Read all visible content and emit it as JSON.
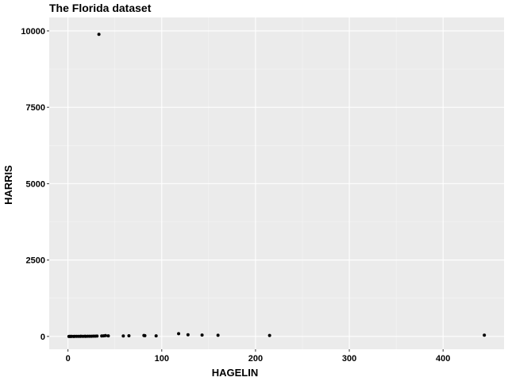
{
  "chart_data": {
    "type": "scatter",
    "title": "The Florida dataset",
    "xlabel": "HAGELIN",
    "ylabel": "HARRIS",
    "xlim": [
      -20,
      465
    ],
    "ylim": [
      -420,
      10440
    ],
    "x_ticks": [
      0,
      100,
      200,
      300,
      400
    ],
    "y_ticks": [
      0,
      2500,
      5000,
      7500,
      10000
    ],
    "x_tick_labels": [
      "0",
      "100",
      "200",
      "300",
      "400"
    ],
    "y_tick_labels": [
      "0",
      "2500",
      "5000",
      "7500",
      "10000"
    ],
    "grid": true,
    "legend": "none",
    "colors": {
      "panel": "#ebebeb",
      "grid_major": "#ffffff",
      "grid_minor": "#f5f5f5",
      "point": "#000000"
    },
    "points": [
      {
        "x": 33,
        "y": 9888
      },
      {
        "x": 1,
        "y": 0
      },
      {
        "x": 2,
        "y": 1
      },
      {
        "x": 3,
        "y": 0
      },
      {
        "x": 4,
        "y": 2
      },
      {
        "x": 6,
        "y": 0
      },
      {
        "x": 7,
        "y": 1
      },
      {
        "x": 9,
        "y": 3
      },
      {
        "x": 11,
        "y": 1
      },
      {
        "x": 13,
        "y": 2
      },
      {
        "x": 14,
        "y": 4
      },
      {
        "x": 16,
        "y": 2
      },
      {
        "x": 18,
        "y": 5
      },
      {
        "x": 19,
        "y": 3
      },
      {
        "x": 21,
        "y": 6
      },
      {
        "x": 23,
        "y": 4
      },
      {
        "x": 25,
        "y": 7
      },
      {
        "x": 27,
        "y": 8
      },
      {
        "x": 29,
        "y": 10
      },
      {
        "x": 31,
        "y": 12
      },
      {
        "x": 36,
        "y": 15
      },
      {
        "x": 38,
        "y": 20
      },
      {
        "x": 40,
        "y": 28
      },
      {
        "x": 43,
        "y": 18
      },
      {
        "x": 59,
        "y": 15
      },
      {
        "x": 65,
        "y": 22
      },
      {
        "x": 81,
        "y": 32
      },
      {
        "x": 82,
        "y": 25
      },
      {
        "x": 94,
        "y": 20
      },
      {
        "x": 118,
        "y": 90
      },
      {
        "x": 128,
        "y": 55
      },
      {
        "x": 143,
        "y": 45
      },
      {
        "x": 160,
        "y": 38
      },
      {
        "x": 215,
        "y": 30
      },
      {
        "x": 444,
        "y": 40
      }
    ]
  }
}
